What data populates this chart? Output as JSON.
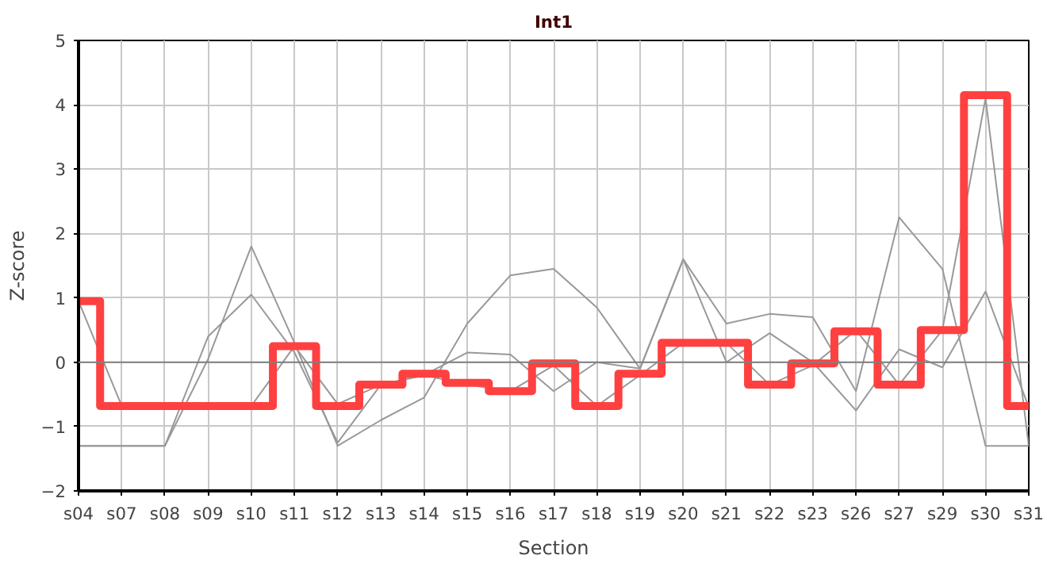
{
  "chart_data": {
    "type": "line",
    "title": "Int1",
    "xlabel": "Section",
    "ylabel": "Z-score",
    "categories": [
      "s04",
      "s07",
      "s08",
      "s09",
      "s10",
      "s11",
      "s12",
      "s13",
      "s14",
      "s15",
      "s16",
      "s17",
      "s18",
      "s19",
      "s20",
      "s21",
      "s22",
      "s23",
      "s26",
      "s27",
      "s29",
      "s30",
      "s31"
    ],
    "ylim": [
      -2,
      5
    ],
    "yticks": [
      -2,
      -1,
      0,
      1,
      2,
      3,
      4,
      5
    ],
    "grid": true,
    "ref_lines": [
      {
        "axis": "y",
        "value": 0,
        "color": "#808080"
      }
    ],
    "series": [
      {
        "color": "#999999",
        "values": [
          -1.3,
          -1.3,
          -1.3,
          0.05,
          1.8,
          0.3,
          -1.3,
          -0.9,
          -0.55,
          0.6,
          1.35,
          1.45,
          0.85,
          -0.1,
          1.6,
          0.6,
          0.75,
          0.7,
          -0.45,
          2.25,
          1.45,
          -1.3,
          -1.3
        ]
      },
      {
        "color": "#999999",
        "values": [
          -1.3,
          -1.3,
          -1.3,
          0.4,
          1.05,
          0.15,
          -1.25,
          -0.35,
          -0.2,
          0.15,
          0.12,
          -0.45,
          0,
          -0.1,
          1.6,
          0,
          0.45,
          0,
          -0.75,
          0.2,
          -0.08,
          1.1,
          -0.7
        ]
      },
      {
        "color": "#999999",
        "values": [
          0.95,
          -0.68,
          -0.68,
          -0.68,
          -0.68,
          0.25,
          -0.65,
          -0.35,
          -0.2,
          -0.35,
          -0.45,
          -0.05,
          -0.68,
          -0.2,
          0.3,
          0.3,
          -0.35,
          -0.05,
          0.5,
          -0.35,
          0.5,
          4.1,
          -1.3
        ]
      },
      {
        "type": "step",
        "color": "#ff4040",
        "values": [
          0.95,
          -0.68,
          -0.68,
          -0.68,
          -0.68,
          0.25,
          -0.68,
          -0.35,
          -0.18,
          -0.32,
          -0.45,
          -0.02,
          -0.68,
          -0.18,
          0.3,
          0.3,
          -0.35,
          -0.02,
          0.48,
          -0.35,
          0.5,
          4.15,
          -0.68
        ]
      }
    ]
  }
}
